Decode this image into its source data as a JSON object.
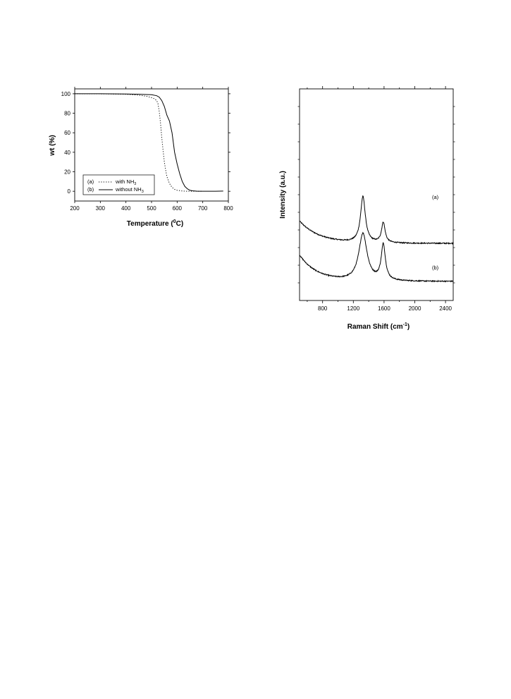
{
  "chart_data": [
    {
      "type": "line",
      "xlabel": "Temperature (",
      "xlabel_sup": "0",
      "xlabel_end": "C)",
      "ylabel": "wt (%)",
      "xlim": [
        200,
        800
      ],
      "ylim": [
        -10,
        105
      ],
      "xticks": [
        "200",
        "300",
        "400",
        "500",
        "600",
        "700",
        "800"
      ],
      "yticks": [
        "0",
        "20",
        "40",
        "60",
        "80",
        "100"
      ],
      "xtick_values": [
        200,
        300,
        400,
        500,
        600,
        700,
        800
      ],
      "ytick_values": [
        0,
        20,
        40,
        60,
        80,
        100
      ],
      "legend": [
        {
          "tag": "(a)",
          "text": "with NH",
          "sub": "3",
          "style": "dotted"
        },
        {
          "tag": "(b)",
          "text": "without NH",
          "sub": "3",
          "style": "solid"
        }
      ],
      "series": [
        {
          "name": "with NH3",
          "style": "dotted",
          "x": [
            200,
            300,
            400,
            450,
            480,
            500,
            510,
            520,
            525,
            530,
            535,
            540,
            545,
            550,
            555,
            560,
            570,
            580,
            590,
            600,
            620,
            640,
            660,
            700
          ],
          "y": [
            100,
            99.9,
            99.5,
            98.5,
            97.5,
            96,
            95,
            93,
            90,
            82,
            70,
            55,
            42,
            30,
            22,
            15,
            8,
            4,
            2,
            1,
            0.3,
            0,
            0,
            0
          ]
        },
        {
          "name": "without NH3",
          "style": "solid",
          "x": [
            200,
            300,
            400,
            450,
            500,
            520,
            530,
            540,
            550,
            560,
            570,
            580,
            590,
            600,
            610,
            620,
            630,
            640,
            650,
            660,
            680,
            700,
            750,
            780
          ],
          "y": [
            100,
            100,
            99.8,
            99.5,
            99,
            98,
            96.5,
            93,
            87,
            78,
            72,
            60,
            40,
            28,
            18,
            10,
            5,
            2.5,
            1,
            0.5,
            0,
            0,
            0,
            0.2
          ]
        }
      ]
    },
    {
      "type": "line",
      "xlabel": "Raman Shift (cm",
      "xlabel_sup": "-1",
      "xlabel_end": ")",
      "ylabel": "Intensity (a.u.)",
      "xlim": [
        500,
        2500
      ],
      "xticks": [
        "800",
        "1200",
        "1600",
        "2000",
        "2400"
      ],
      "xtick_values": [
        800,
        1200,
        1600,
        2000,
        2400
      ],
      "series": [
        {
          "name": "(a)",
          "baseline": 0.29,
          "slope_amp": 0.17,
          "slope_decay": 260,
          "peaks": [
            {
              "center": 1325,
              "height": 0.35,
              "width": 38
            },
            {
              "center": 1590,
              "height": 0.155,
              "width": 28
            }
          ]
        },
        {
          "name": "(b)",
          "baseline": 0.0,
          "slope_amp": 0.2,
          "slope_decay": 230,
          "peaks": [
            {
              "center": 1325,
              "height": 0.36,
              "width": 65
            },
            {
              "center": 1590,
              "height": 0.27,
              "width": 33
            }
          ]
        }
      ]
    }
  ]
}
